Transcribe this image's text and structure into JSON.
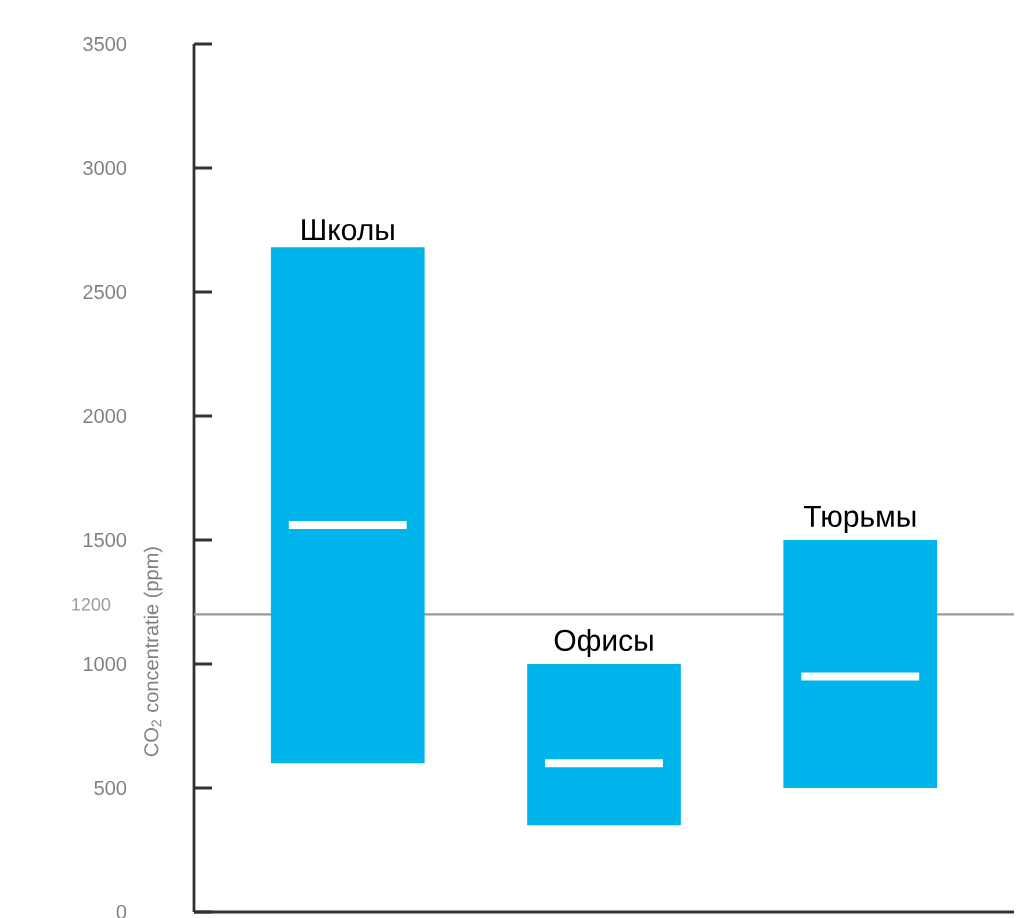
{
  "chart_data": {
    "type": "box",
    "ylabel": "CO$_{2}$ concentratie (ppm)",
    "categories": [
      "Школы",
      "Офисы",
      "Тюрьмы"
    ],
    "boxes": [
      {
        "low": 600,
        "q1": 600,
        "median": 1560,
        "q3": 2680,
        "high": 2680
      },
      {
        "low": 350,
        "q1": 350,
        "median": 600,
        "q3": 1000,
        "high": 1000
      },
      {
        "low": 500,
        "q1": 500,
        "median": 950,
        "q3": 1500,
        "high": 1500
      }
    ],
    "color": "#00b5eb",
    "ylim": [
      0,
      3500
    ],
    "yticks": [
      0,
      500,
      1000,
      1500,
      2000,
      2500,
      3000,
      3500
    ],
    "ref_lines": [
      {
        "axis": "y",
        "value": 1200,
        "label": "1200",
        "color": "#9a9a9a"
      }
    ],
    "grid": false
  }
}
